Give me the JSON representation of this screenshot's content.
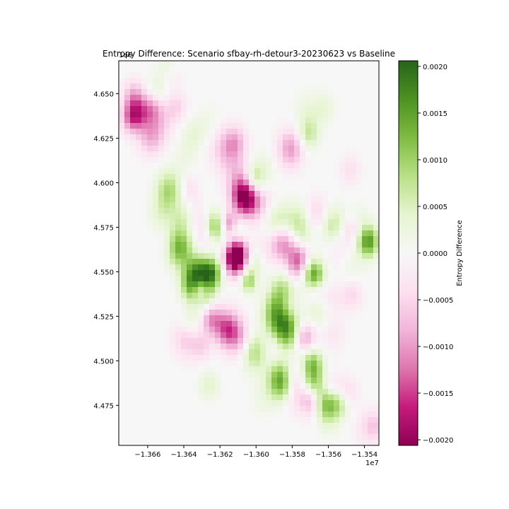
{
  "chart_data": {
    "type": "heatmap",
    "title": "Entropy Difference: Scenario sfbay-rh-detour3-20230623 vs Baseline",
    "xlabel": "",
    "ylabel": "",
    "x_offset_label": "1e7",
    "y_offset_label": "1e6",
    "xlim": [
      -1.3676,
      -1.3532
    ],
    "ylim": [
      4.4525,
      4.6685
    ],
    "x_ticks": [
      {
        "value": -1.366,
        "label": "−1.366"
      },
      {
        "value": -1.364,
        "label": "−1.364"
      },
      {
        "value": -1.362,
        "label": "−1.362"
      },
      {
        "value": -1.36,
        "label": "−1.360"
      },
      {
        "value": -1.358,
        "label": "−1.358"
      },
      {
        "value": -1.356,
        "label": "−1.356"
      },
      {
        "value": -1.354,
        "label": "−1.354"
      }
    ],
    "y_ticks": [
      {
        "value": 4.475,
        "label": "4.475"
      },
      {
        "value": 4.5,
        "label": "4.500"
      },
      {
        "value": 4.525,
        "label": "4.525"
      },
      {
        "value": 4.55,
        "label": "4.550"
      },
      {
        "value": 4.575,
        "label": "4.575"
      },
      {
        "value": 4.6,
        "label": "4.600"
      },
      {
        "value": 4.625,
        "label": "4.625"
      },
      {
        "value": 4.65,
        "label": "4.650"
      }
    ],
    "colorbar": {
      "label": "Entropy Difference",
      "cmap": "PiYG",
      "vmin": -0.00206,
      "vmax": 0.00206,
      "ticks": [
        {
          "value": 0.002,
          "label": "0.0020"
        },
        {
          "value": 0.0015,
          "label": "0.0015"
        },
        {
          "value": 0.001,
          "label": "0.0010"
        },
        {
          "value": 0.0005,
          "label": "0.0005"
        },
        {
          "value": 0.0,
          "label": "0.0000"
        },
        {
          "value": -0.0005,
          "label": "−0.0005"
        },
        {
          "value": -0.001,
          "label": "−0.0010"
        },
        {
          "value": -0.0015,
          "label": "−0.0015"
        },
        {
          "value": -0.002,
          "label": "−0.0020"
        }
      ]
    },
    "colors": {
      "neutral": "#f7f7f7",
      "pink_light": "#fde0ef",
      "pink_mid": "#f1b6da",
      "pink_dark": "#c51b7d",
      "green_light": "#e6f5d0",
      "green_mid": "#b8e186",
      "green_dark": "#4d9221"
    },
    "blobs": [
      {
        "x": -1.3669,
        "y": 4.6365,
        "v": -0.0009,
        "s": 0.0004
      },
      {
        "x": -1.3668,
        "y": 4.6495,
        "v": -0.0006,
        "s": 0.0004
      },
      {
        "x": -1.3665,
        "y": 4.64,
        "v": -0.0011,
        "s": 0.0005
      },
      {
        "x": -1.3657,
        "y": 4.642,
        "v": -0.0007,
        "s": 0.0004
      },
      {
        "x": -1.3658,
        "y": 4.6255,
        "v": -0.0008,
        "s": 0.0005
      },
      {
        "x": -1.3649,
        "y": 4.665,
        "v": 0.0004,
        "s": 0.0004
      },
      {
        "x": -1.3655,
        "y": 4.651,
        "v": 0.0004,
        "s": 0.0004
      },
      {
        "x": -1.3652,
        "y": 4.635,
        "v": -0.0004,
        "s": 0.0005
      },
      {
        "x": -1.3647,
        "y": 4.661,
        "v": -0.0003,
        "s": 0.0004
      },
      {
        "x": -1.3644,
        "y": 4.6425,
        "v": -0.0005,
        "s": 0.0004
      },
      {
        "x": -1.3635,
        "y": 4.627,
        "v": 0.0003,
        "s": 0.0004
      },
      {
        "x": -1.3626,
        "y": 4.633,
        "v": 0.0002,
        "s": 0.0005
      },
      {
        "x": -1.3639,
        "y": 4.615,
        "v": 0.0002,
        "s": 0.0005
      },
      {
        "x": -1.3616,
        "y": 4.619,
        "v": -0.0008,
        "s": 0.0006
      },
      {
        "x": -1.3611,
        "y": 4.623,
        "v": -0.0005,
        "s": 0.0004
      },
      {
        "x": -1.3581,
        "y": 4.619,
        "v": -0.001,
        "s": 0.0005
      },
      {
        "x": -1.3571,
        "y": 4.627,
        "v": 0.0007,
        "s": 0.0004
      },
      {
        "x": -1.3571,
        "y": 4.64,
        "v": 0.0003,
        "s": 0.0005
      },
      {
        "x": -1.3562,
        "y": 4.642,
        "v": 0.0003,
        "s": 0.0004
      },
      {
        "x": -1.3595,
        "y": 4.608,
        "v": 0.0002,
        "s": 0.0005
      },
      {
        "x": -1.3548,
        "y": 4.607,
        "v": -0.0004,
        "s": 0.0004
      },
      {
        "x": -1.3648,
        "y": 4.596,
        "v": 0.0009,
        "s": 0.0005
      },
      {
        "x": -1.3652,
        "y": 4.583,
        "v": 0.0004,
        "s": 0.0005
      },
      {
        "x": -1.3637,
        "y": 4.596,
        "v": -0.0004,
        "s": 0.0004
      },
      {
        "x": -1.3641,
        "y": 4.58,
        "v": 0.0004,
        "s": 0.0004
      },
      {
        "x": -1.3631,
        "y": 4.579,
        "v": -0.0003,
        "s": 0.0004
      },
      {
        "x": -1.3649,
        "y": 4.566,
        "v": -0.0003,
        "s": 0.0004
      },
      {
        "x": -1.361,
        "y": 4.6055,
        "v": -0.0004,
        "s": 0.0005
      },
      {
        "x": -1.3601,
        "y": 4.602,
        "v": 0.0009,
        "s": 0.0004
      },
      {
        "x": -1.3607,
        "y": 4.593,
        "v": -0.0018,
        "s": 0.0005
      },
      {
        "x": -1.3603,
        "y": 4.589,
        "v": -0.0008,
        "s": 0.0005
      },
      {
        "x": -1.3594,
        "y": 4.587,
        "v": -0.0004,
        "s": 0.0005
      },
      {
        "x": -1.3623,
        "y": 4.575,
        "v": 0.0011,
        "s": 0.0004
      },
      {
        "x": -1.3615,
        "y": 4.577,
        "v": -0.0011,
        "s": 0.0003
      },
      {
        "x": -1.361,
        "y": 4.572,
        "v": 0.0004,
        "s": 0.0004
      },
      {
        "x": -1.3628,
        "y": 4.569,
        "v": -0.0004,
        "s": 0.0004
      },
      {
        "x": -1.3643,
        "y": 4.564,
        "v": 0.0014,
        "s": 0.0005
      },
      {
        "x": -1.361,
        "y": 4.561,
        "v": -0.0016,
        "s": 0.0004
      },
      {
        "x": -1.3612,
        "y": 4.556,
        "v": -0.0017,
        "s": 0.0004
      },
      {
        "x": -1.3601,
        "y": 4.555,
        "v": 0.0007,
        "s": 0.0004
      },
      {
        "x": -1.3597,
        "y": 4.561,
        "v": -0.0003,
        "s": 0.0005
      },
      {
        "x": -1.359,
        "y": 4.58,
        "v": 0.0005,
        "s": 0.0005
      },
      {
        "x": -1.3585,
        "y": 4.575,
        "v": 0.0005,
        "s": 0.0005
      },
      {
        "x": -1.3576,
        "y": 4.578,
        "v": 0.0006,
        "s": 0.0005
      },
      {
        "x": -1.3585,
        "y": 4.567,
        "v": -0.0013,
        "s": 0.0005
      },
      {
        "x": -1.3575,
        "y": 4.568,
        "v": 0.0004,
        "s": 0.0004
      },
      {
        "x": -1.3566,
        "y": 4.582,
        "v": -0.0006,
        "s": 0.0005
      },
      {
        "x": -1.3558,
        "y": 4.576,
        "v": 0.0008,
        "s": 0.0005
      },
      {
        "x": -1.3547,
        "y": 4.574,
        "v": -0.0005,
        "s": 0.0004
      },
      {
        "x": -1.3543,
        "y": 4.58,
        "v": 0.0003,
        "s": 0.0004
      },
      {
        "x": -1.3538,
        "y": 4.567,
        "v": 0.0016,
        "s": 0.0004
      },
      {
        "x": -1.3555,
        "y": 4.564,
        "v": -0.0003,
        "s": 0.0005
      },
      {
        "x": -1.3547,
        "y": 4.553,
        "v": 0.0002,
        "s": 0.0005
      },
      {
        "x": -1.3633,
        "y": 4.548,
        "v": 0.0017,
        "s": 0.0005
      },
      {
        "x": -1.3625,
        "y": 4.549,
        "v": 0.0016,
        "s": 0.0004
      },
      {
        "x": -1.3631,
        "y": 4.54,
        "v": -0.001,
        "s": 0.0003
      },
      {
        "x": -1.3636,
        "y": 4.541,
        "v": 0.0007,
        "s": 0.0004
      },
      {
        "x": -1.3628,
        "y": 4.535,
        "v": 0.0007,
        "s": 0.0004
      },
      {
        "x": -1.3604,
        "y": 4.545,
        "v": 0.0011,
        "s": 0.0003
      },
      {
        "x": -1.3603,
        "y": 4.551,
        "v": -0.0003,
        "s": 0.0004
      },
      {
        "x": -1.3576,
        "y": 4.559,
        "v": -0.0009,
        "s": 0.0004
      },
      {
        "x": -1.3578,
        "y": 4.552,
        "v": -0.0007,
        "s": 0.0004
      },
      {
        "x": -1.3568,
        "y": 4.548,
        "v": 0.0016,
        "s": 0.0004
      },
      {
        "x": -1.3585,
        "y": 4.538,
        "v": 0.001,
        "s": 0.0005
      },
      {
        "x": -1.3589,
        "y": 4.526,
        "v": 0.0012,
        "s": 0.0005
      },
      {
        "x": -1.3583,
        "y": 4.532,
        "v": -0.0005,
        "s": 0.0004
      },
      {
        "x": -1.3567,
        "y": 4.54,
        "v": -0.0005,
        "s": 0.0004
      },
      {
        "x": -1.3566,
        "y": 4.527,
        "v": 0.0004,
        "s": 0.0005
      },
      {
        "x": -1.3557,
        "y": 4.535,
        "v": -0.0003,
        "s": 0.0004
      },
      {
        "x": -1.3547,
        "y": 4.537,
        "v": -0.0005,
        "s": 0.0004
      },
      {
        "x": -1.3558,
        "y": 4.516,
        "v": -0.0003,
        "s": 0.0005
      },
      {
        "x": -1.3625,
        "y": 4.524,
        "v": -0.001,
        "s": 0.0004
      },
      {
        "x": -1.3636,
        "y": 4.522,
        "v": 0.0004,
        "s": 0.0004
      },
      {
        "x": -1.3616,
        "y": 4.518,
        "v": -0.0014,
        "s": 0.0005
      },
      {
        "x": -1.3609,
        "y": 4.512,
        "v": -0.0007,
        "s": 0.0005
      },
      {
        "x": -1.3639,
        "y": 4.512,
        "v": -0.0006,
        "s": 0.0005
      },
      {
        "x": -1.363,
        "y": 4.508,
        "v": -0.0005,
        "s": 0.0004
      },
      {
        "x": -1.3601,
        "y": 4.505,
        "v": 0.0009,
        "s": 0.0005
      },
      {
        "x": -1.359,
        "y": 4.507,
        "v": -0.0003,
        "s": 0.0004
      },
      {
        "x": -1.3583,
        "y": 4.517,
        "v": 0.0015,
        "s": 0.0005
      },
      {
        "x": -1.3573,
        "y": 4.513,
        "v": -0.001,
        "s": 0.0004
      },
      {
        "x": -1.3569,
        "y": 4.499,
        "v": 0.001,
        "s": 0.0004
      },
      {
        "x": -1.3586,
        "y": 4.489,
        "v": 0.0016,
        "s": 0.0005
      },
      {
        "x": -1.358,
        "y": 4.492,
        "v": -0.0005,
        "s": 0.0004
      },
      {
        "x": -1.3577,
        "y": 4.482,
        "v": -0.0006,
        "s": 0.0005
      },
      {
        "x": -1.3568,
        "y": 4.486,
        "v": 0.0012,
        "s": 0.0005
      },
      {
        "x": -1.3569,
        "y": 4.478,
        "v": -0.0011,
        "s": 0.0004
      },
      {
        "x": -1.3559,
        "y": 4.486,
        "v": -0.0004,
        "s": 0.0004
      },
      {
        "x": -1.3562,
        "y": 4.475,
        "v": 0.001,
        "s": 0.0004
      },
      {
        "x": -1.3555,
        "y": 4.475,
        "v": 0.0008,
        "s": 0.0004
      },
      {
        "x": -1.3549,
        "y": 4.483,
        "v": -0.0004,
        "s": 0.0004
      },
      {
        "x": -1.3539,
        "y": 4.461,
        "v": -0.0003,
        "s": 0.0005
      },
      {
        "x": -1.3534,
        "y": 4.464,
        "v": -0.0005,
        "s": 0.0004
      },
      {
        "x": -1.3626,
        "y": 4.486,
        "v": 0.0004,
        "s": 0.0004
      },
      {
        "x": -1.3596,
        "y": 4.479,
        "v": 0.0002,
        "s": 0.0005
      },
      {
        "x": -1.356,
        "y": 4.464,
        "v": 0.0002,
        "s": 0.0004
      }
    ]
  }
}
